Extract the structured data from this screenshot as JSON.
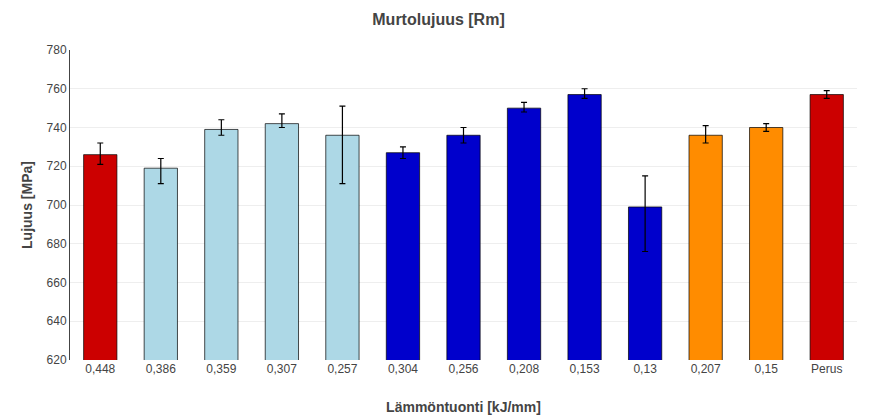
{
  "chart_data": {
    "type": "bar",
    "title": "Murtolujuus [Rm]",
    "xlabel": "Lämmöntuonti [kJ/mm]",
    "ylabel": "Lujuus [MPa]",
    "categories": [
      "0,448",
      "0,386",
      "0,359",
      "0,307",
      "0,257",
      "0,304",
      "0,256",
      "0,208",
      "0,153",
      "0,13",
      "0,207",
      "0,15",
      "Perus"
    ],
    "values": [
      726,
      719,
      739,
      742,
      736,
      727,
      736,
      750,
      757,
      699,
      736,
      740,
      757
    ],
    "error_low": [
      5,
      8,
      3,
      2,
      25,
      3,
      4,
      2,
      2,
      23,
      4,
      2,
      2
    ],
    "error_high": [
      6,
      5,
      5,
      5,
      15,
      3,
      4,
      3,
      3,
      16,
      5,
      2,
      2
    ],
    "colors": [
      "#cc0000",
      "#add8e6",
      "#add8e6",
      "#add8e6",
      "#add8e6",
      "#0000cc",
      "#0000cc",
      "#0000cc",
      "#0000cc",
      "#0000cc",
      "#ff8c00",
      "#ff8c00",
      "#cc0000"
    ],
    "ylim": [
      620,
      780
    ],
    "yticks": [
      620,
      640,
      660,
      680,
      700,
      720,
      740,
      760,
      780
    ],
    "grid": true
  }
}
